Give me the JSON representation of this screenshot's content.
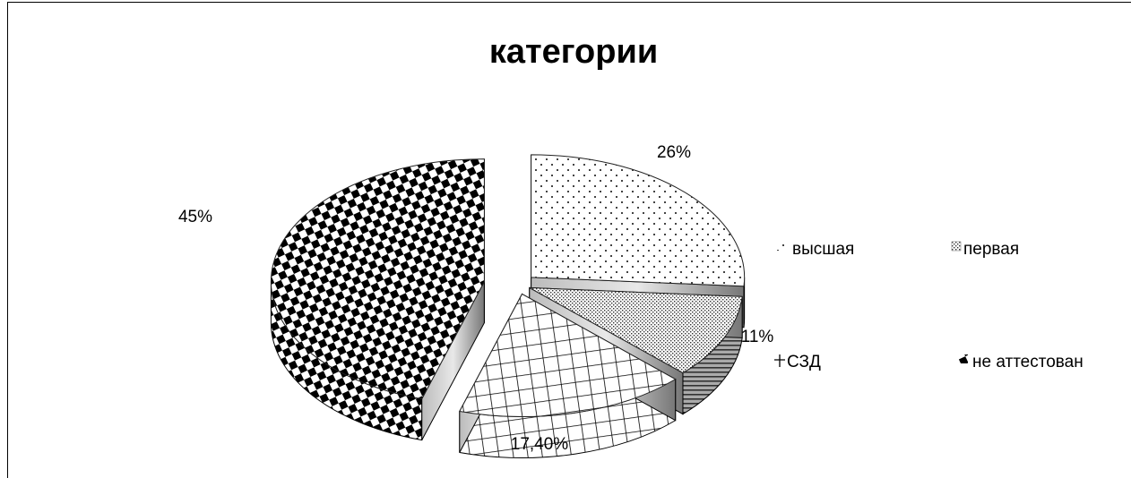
{
  "chart_data": {
    "type": "pie",
    "title": "категории",
    "categories": [
      "высшая",
      "первая",
      "СЗД",
      "не аттестован"
    ],
    "values": [
      26,
      11,
      17.4,
      45
    ],
    "data_labels": [
      "26%",
      "11%",
      "17,40%",
      "45%"
    ],
    "legend_position": "right",
    "style": "3d-exploded, monochrome patterns"
  }
}
